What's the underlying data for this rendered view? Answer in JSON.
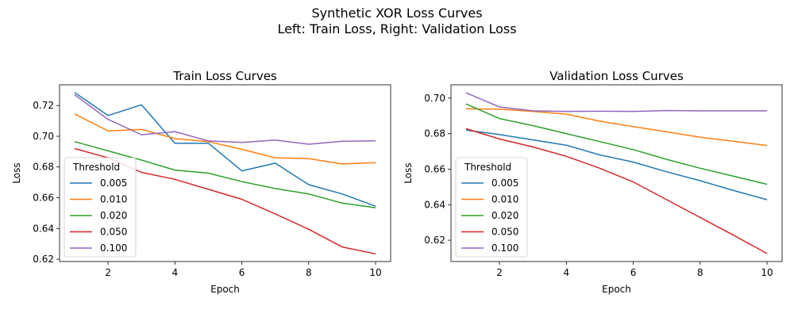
{
  "suptitle": [
    "Synthetic XOR Loss Curves",
    "Left: Train Loss, Right: Validation Loss"
  ],
  "chart_data": [
    {
      "type": "line",
      "title": "Train Loss Curves",
      "xlabel": "Epoch",
      "ylabel": "Loss",
      "xlim": [
        0.55,
        10.45
      ],
      "ylim": [
        0.6185,
        0.7335
      ],
      "xticks": [
        2,
        4,
        6,
        8,
        10
      ],
      "yticks": [
        0.62,
        0.64,
        0.66,
        0.68,
        0.7,
        0.72
      ],
      "grid": false,
      "legend": {
        "title": "Threshold",
        "placement": "lower-left"
      },
      "x": [
        1,
        2,
        3,
        4,
        5,
        6,
        7,
        8,
        9,
        10
      ],
      "series": [
        {
          "name": "0.005",
          "color": "#1f77b4",
          "values": [
            0.7285,
            0.7135,
            0.7205,
            0.6955,
            0.6955,
            0.6775,
            0.6825,
            0.6685,
            0.6625,
            0.6545
          ]
        },
        {
          "name": "0.010",
          "color": "#ff7f0e",
          "values": [
            0.7145,
            0.7035,
            0.7045,
            0.6985,
            0.6965,
            0.6915,
            0.686,
            0.6855,
            0.682,
            0.6828
          ]
        },
        {
          "name": "0.020",
          "color": "#2ca02c",
          "values": [
            0.6965,
            0.6905,
            0.6845,
            0.678,
            0.676,
            0.6705,
            0.666,
            0.6625,
            0.6565,
            0.6535
          ]
        },
        {
          "name": "0.050",
          "color": "#d62728",
          "values": [
            0.692,
            0.686,
            0.6765,
            0.672,
            0.6655,
            0.659,
            0.6495,
            0.6395,
            0.628,
            0.6235
          ]
        },
        {
          "name": "0.100",
          "color": "#9467bd",
          "values": [
            0.727,
            0.711,
            0.701,
            0.703,
            0.697,
            0.696,
            0.6975,
            0.6948,
            0.6968,
            0.697
          ]
        }
      ]
    },
    {
      "type": "line",
      "title": "Validation Loss Curves",
      "xlabel": "Epoch",
      "ylabel": "Loss",
      "xlim": [
        0.55,
        10.45
      ],
      "ylim": [
        0.608,
        0.7075
      ],
      "xticks": [
        2,
        4,
        6,
        8,
        10
      ],
      "yticks": [
        0.62,
        0.64,
        0.66,
        0.68,
        0.7
      ],
      "grid": false,
      "legend": {
        "title": "Threshold",
        "placement": "lower-left"
      },
      "x": [
        1,
        2,
        3,
        4,
        5,
        6,
        7,
        8,
        9,
        10
      ],
      "series": [
        {
          "name": "0.005",
          "color": "#1f77b4",
          "values": [
            0.682,
            0.6795,
            0.6765,
            0.6735,
            0.668,
            0.664,
            0.6585,
            0.6535,
            0.648,
            0.6428
          ]
        },
        {
          "name": "0.010",
          "color": "#ff7f0e",
          "values": [
            0.694,
            0.6938,
            0.6925,
            0.691,
            0.687,
            0.684,
            0.681,
            0.678,
            0.6757,
            0.6733
          ]
        },
        {
          "name": "0.020",
          "color": "#2ca02c",
          "values": [
            0.6967,
            0.6885,
            0.6845,
            0.68,
            0.6755,
            0.671,
            0.6655,
            0.6605,
            0.656,
            0.6515
          ]
        },
        {
          "name": "0.050",
          "color": "#d62728",
          "values": [
            0.6828,
            0.677,
            0.6725,
            0.6672,
            0.6605,
            0.6528,
            0.6428,
            0.6328,
            0.6228,
            0.6125
          ]
        },
        {
          "name": "0.100",
          "color": "#9467bd",
          "values": [
            0.703,
            0.695,
            0.6928,
            0.6925,
            0.6926,
            0.6925,
            0.693,
            0.6928,
            0.6928,
            0.6928
          ]
        }
      ]
    }
  ]
}
